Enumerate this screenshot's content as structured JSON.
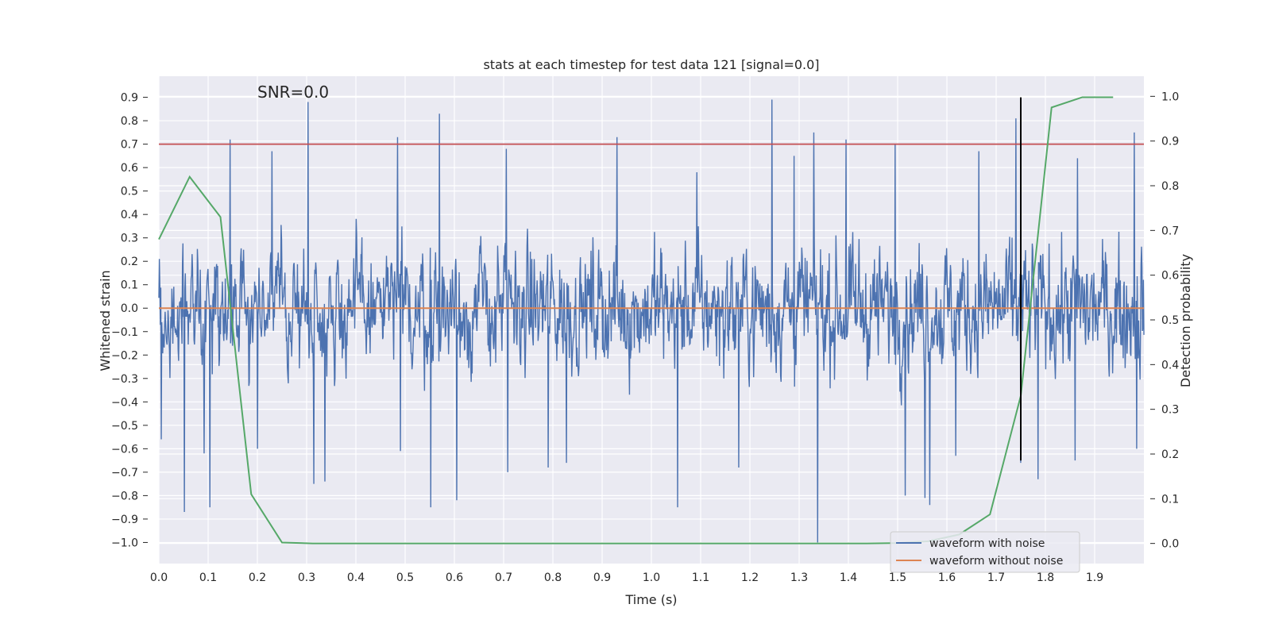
{
  "chart_data": {
    "type": "line",
    "title": "stats at each timestep for test data 121 [signal=0.0]",
    "annotation": "SNR=0.0",
    "xlabel": "Time (s)",
    "ylabel": "Whitened strain",
    "ylabel_right": "Detection probability",
    "xlim": [
      0.0,
      2.0
    ],
    "ylim": [
      -1.09,
      0.99
    ],
    "ylim_right": [
      -0.045,
      1.045
    ],
    "x_ticks": [
      0.0,
      0.1,
      0.2,
      0.3,
      0.4,
      0.5,
      0.6,
      0.7,
      0.8,
      0.9,
      1.0,
      1.1,
      1.2,
      1.3,
      1.4,
      1.5,
      1.6,
      1.7,
      1.8,
      1.9
    ],
    "x_tick_labels": [
      "0.0",
      "0.1",
      "0.2",
      "0.3",
      "0.4",
      "0.5",
      "0.6",
      "0.7",
      "0.8",
      "0.9",
      "1.0",
      "1.1",
      "1.2",
      "1.3",
      "1.4",
      "1.5",
      "1.6",
      "1.7",
      "1.8",
      "1.9"
    ],
    "y_ticks": [
      -1.0,
      -0.9,
      -0.8,
      -0.7,
      -0.6,
      -0.5,
      -0.4,
      -0.3,
      -0.2,
      -0.1,
      0.0,
      0.1,
      0.2,
      0.3,
      0.4,
      0.5,
      0.6,
      0.7,
      0.8,
      0.9
    ],
    "y_tick_labels": [
      "−1.0",
      "−0.9",
      "−0.8",
      "−0.7",
      "−0.6",
      "−0.5",
      "−0.4",
      "−0.3",
      "−0.2",
      "−0.1",
      "0.0",
      "0.1",
      "0.2",
      "0.3",
      "0.4",
      "0.5",
      "0.6",
      "0.7",
      "0.8",
      "0.9"
    ],
    "y_right_ticks": [
      0.0,
      0.1,
      0.2,
      0.3,
      0.4,
      0.5,
      0.6,
      0.7,
      0.8,
      0.9,
      1.0
    ],
    "y_right_tick_labels": [
      "0.0",
      "0.1",
      "0.2",
      "0.3",
      "0.4",
      "0.5",
      "0.6",
      "0.7",
      "0.8",
      "0.9",
      "1.0"
    ],
    "threshold_line": {
      "y": 0.7,
      "color": "#c44e52"
    },
    "marker_line": {
      "x": 1.75,
      "y_from": -0.65,
      "y_to": 0.9,
      "color": "#000000"
    },
    "series": [
      {
        "name": "waveform with noise",
        "color": "#4c72b0",
        "kind": "noise",
        "n_points": 2048,
        "x_range": [
          0.0,
          2.0
        ],
        "typical_range": [
          -0.45,
          0.45
        ],
        "spikes": [
          {
            "x": 0.005,
            "y": -0.56
          },
          {
            "x": 0.052,
            "y": -0.87
          },
          {
            "x": 0.092,
            "y": -0.62
          },
          {
            "x": 0.104,
            "y": -0.85
          },
          {
            "x": 0.145,
            "y": 0.72
          },
          {
            "x": 0.2,
            "y": -0.6
          },
          {
            "x": 0.23,
            "y": 0.67
          },
          {
            "x": 0.303,
            "y": 0.88
          },
          {
            "x": 0.315,
            "y": -0.75
          },
          {
            "x": 0.337,
            "y": -0.74
          },
          {
            "x": 0.485,
            "y": 0.73
          },
          {
            "x": 0.49,
            "y": -0.61
          },
          {
            "x": 0.552,
            "y": -0.85
          },
          {
            "x": 0.57,
            "y": 0.83
          },
          {
            "x": 0.605,
            "y": -0.82
          },
          {
            "x": 0.705,
            "y": 0.68
          },
          {
            "x": 0.708,
            "y": -0.7
          },
          {
            "x": 0.79,
            "y": -0.68
          },
          {
            "x": 0.828,
            "y": -0.66
          },
          {
            "x": 0.93,
            "y": 0.73
          },
          {
            "x": 1.053,
            "y": -0.85
          },
          {
            "x": 1.092,
            "y": 0.58
          },
          {
            "x": 1.177,
            "y": -0.68
          },
          {
            "x": 1.245,
            "y": 0.89
          },
          {
            "x": 1.29,
            "y": 0.65
          },
          {
            "x": 1.33,
            "y": 0.75
          },
          {
            "x": 1.338,
            "y": -1.0
          },
          {
            "x": 1.395,
            "y": 0.72
          },
          {
            "x": 1.495,
            "y": 0.7
          },
          {
            "x": 1.515,
            "y": -0.8
          },
          {
            "x": 1.555,
            "y": -0.81
          },
          {
            "x": 1.565,
            "y": -0.84
          },
          {
            "x": 1.618,
            "y": -0.63
          },
          {
            "x": 1.665,
            "y": 0.67
          },
          {
            "x": 1.74,
            "y": 0.81
          },
          {
            "x": 1.75,
            "y": -0.66
          },
          {
            "x": 1.785,
            "y": -0.73
          },
          {
            "x": 1.86,
            "y": -0.65
          },
          {
            "x": 1.865,
            "y": 0.64
          },
          {
            "x": 1.98,
            "y": 0.75
          },
          {
            "x": 1.985,
            "y": -0.6
          }
        ]
      },
      {
        "name": "waveform without noise",
        "color": "#dd8452",
        "axis": "left",
        "x": [
          0.0,
          2.0
        ],
        "y": [
          0.0,
          0.0
        ]
      },
      {
        "name": "Detection probability",
        "color": "#55a868",
        "axis": "right",
        "x": [
          0.0,
          0.0625,
          0.125,
          0.1875,
          0.25,
          0.3125,
          0.375,
          0.4375,
          0.5,
          0.5625,
          0.625,
          0.6875,
          0.75,
          0.8125,
          0.875,
          0.9375,
          1.0,
          1.0625,
          1.125,
          1.1875,
          1.25,
          1.3125,
          1.375,
          1.4375,
          1.5,
          1.5625,
          1.625,
          1.6875,
          1.75,
          1.8125,
          1.875,
          1.9375
        ],
        "y": [
          0.68,
          0.82,
          0.73,
          0.11,
          0.002,
          0.0,
          0.0,
          0.0,
          0.0,
          0.0,
          0.0,
          0.0,
          0.0,
          0.0,
          0.0,
          0.0,
          0.0,
          0.0,
          0.0,
          0.0,
          0.0,
          0.0,
          0.0,
          0.0,
          0.001,
          0.005,
          0.02,
          0.065,
          0.33,
          0.975,
          0.998,
          0.998
        ]
      }
    ],
    "legend": {
      "placement": "bottom-right",
      "entries": [
        {
          "label": "waveform with noise",
          "color": "#4c72b0"
        },
        {
          "label": "waveform without noise",
          "color": "#dd8452"
        }
      ]
    },
    "background": "#eaeaf2",
    "grid": true
  }
}
